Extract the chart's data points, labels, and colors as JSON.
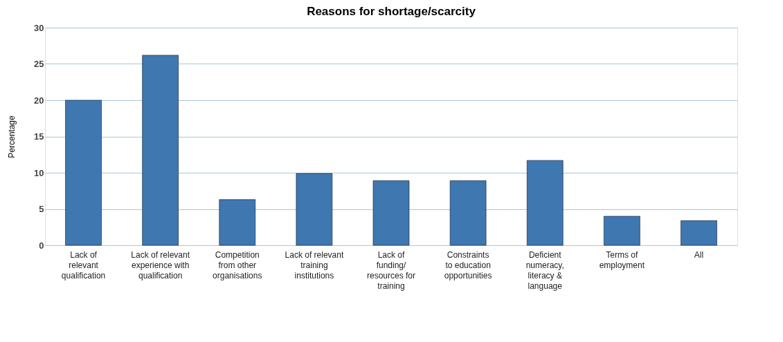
{
  "chart_data": {
    "type": "bar",
    "title": "Reasons for shortage/scarcity",
    "ylabel": "Percentage",
    "categories": [
      "Lack of\nrelevant\nqualification",
      "Lack of relevant\nexperience with\nqualification",
      "Competition\nfrom other\norganisations",
      "Lack of relevant\ntraining\ninstitutions",
      "Lack of\nfunding/\nresources for\ntraining",
      "Constraints\nto education\nopportunities",
      "Deficient\nnumeracy,\nliteracy &\nlanguage",
      "Terms of\nemployment",
      "All"
    ],
    "values": [
      20,
      26.2,
      6.3,
      9.9,
      8.9,
      8.9,
      11.7,
      4.0,
      3.4
    ],
    "color": "#3f77b0",
    "ylim": [
      0,
      30
    ],
    "yticks": [
      0,
      5,
      10,
      15,
      20,
      25,
      30
    ],
    "grid": "y"
  }
}
